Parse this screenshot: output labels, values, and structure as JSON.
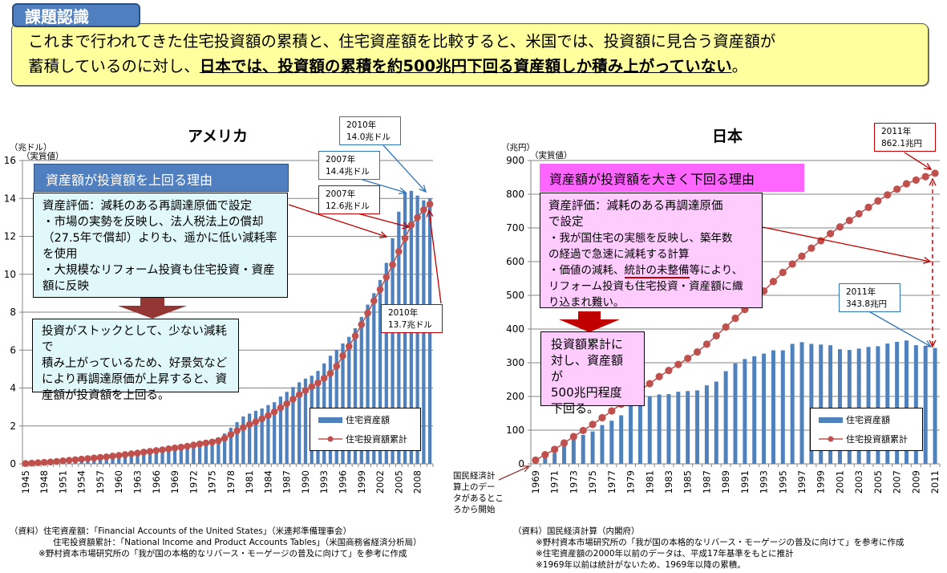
{
  "header": {
    "tag": "課題認識",
    "line1": "これまで行われてきた住宅投資額の累積と、住宅資産額を比較すると、米国では、投資額に見合う資産額が",
    "line2_plain": "蓄積しているのに対し、",
    "line2_underlined": "日本では、投資額の累積を約500兆円下回る資産額しか積み上がっていない",
    "line2_end": "。"
  },
  "us_panel": {
    "reason_title": "資産額が投資額を上回る理由",
    "reason_lines": [
      "資産評価：減耗のある再調達原価で設定",
      "・市場の実勢を反映し、法人税法上の償却",
      "（27.5年で償却）よりも、遥かに低い減耗率",
      "を使用",
      "・大規模なリフォーム投資も住宅投資・資産",
      "額に反映"
    ],
    "conclusion_lines": [
      "投資がストックとして、少ない減耗で",
      "積み上がっているため、好景気など",
      "により再調達原価が上昇すると、資",
      "産額が投資額を上回る。"
    ],
    "callouts": [
      {
        "year": "2010年",
        "value": "14.0兆ドル",
        "color": "blue"
      },
      {
        "year": "2007年",
        "value": "14.4兆ドル",
        "color": "blue"
      },
      {
        "year": "2007年",
        "value": "12.6兆ドル",
        "color": "red"
      },
      {
        "year": "2010年",
        "value": "13.7兆ドル",
        "color": "red"
      }
    ],
    "sources": [
      "（資料）住宅資産額：「Financial Accounts of the United States」（米連邦準備理事会）",
      "住宅投資額累計：「National Income and Product Accounts Tables」（米国商務省経済分析局）",
      "※野村資本市場研究所の「我が国の本格的なリバース・モーゲージの普及に向けて」を参考に作成"
    ]
  },
  "jp_panel": {
    "reason_title": "資産額が投資額を大きく下回る理由",
    "reason_lines": [
      "資産評価：減耗のある再調達原価",
      "で設定",
      "・我が国住宅の実態を反映し、築年数",
      "の経過で急速に減耗する計算"
    ],
    "reason_line5_pre": "・価値の減耗、",
    "reason_line5_underlined": "統計の未整備",
    "reason_line5_post": "等により、",
    "reason_lines_tail": [
      "リフォーム投資も住宅投資・資産額に織",
      "り込まれ難い。"
    ],
    "conclusion_lines": [
      "投資額累計に",
      "対し、資産額が",
      "500兆円程度",
      "下回る。"
    ],
    "callouts": [
      {
        "year": "2011年",
        "value": "862.1兆円",
        "color": "red"
      },
      {
        "year": "2011年",
        "value": "343.8兆円",
        "color": "blue"
      }
    ],
    "start_note": [
      "国民経済計",
      "算上のデー",
      "タがあるとこ",
      "ろから開始"
    ],
    "sources": [
      "（資料）国民経済計算（内閣府）",
      "※野村資本市場研究所の「我が国の本格的なリバース・モーゲージの普及に向けて」を参考に作成",
      "※住宅資産額の2000年以前のデータは、平成17年基準をもとに推計",
      "※1969年以前は統計がないため、1969年以降の累積。"
    ]
  },
  "colors": {
    "bar": "#4f81bd",
    "line": "#c0504d",
    "callout_blue": "#2e75b6",
    "callout_red": "#c00000",
    "arrow_down_us": "#943634",
    "arrow_down_jp": "#c00000"
  },
  "chart_data": [
    {
      "type": "bar+line",
      "title": "アメリカ",
      "unit_label": "（兆ドル）",
      "unit_sub": "（実質値）",
      "xlabel": "",
      "ylabel": "兆ドル",
      "ylim": [
        0,
        16
      ],
      "yticks": [
        0,
        2,
        4,
        6,
        8,
        10,
        12,
        14,
        16
      ],
      "grid": true,
      "legend": "bottom-right",
      "x": [
        1945,
        1946,
        1947,
        1948,
        1949,
        1950,
        1951,
        1952,
        1953,
        1954,
        1955,
        1956,
        1957,
        1958,
        1959,
        1960,
        1961,
        1962,
        1963,
        1964,
        1965,
        1966,
        1967,
        1968,
        1969,
        1970,
        1971,
        1972,
        1973,
        1974,
        1975,
        1976,
        1977,
        1978,
        1979,
        1980,
        1981,
        1982,
        1983,
        1984,
        1985,
        1986,
        1987,
        1988,
        1989,
        1990,
        1991,
        1992,
        1993,
        1994,
        1995,
        1996,
        1997,
        1998,
        1999,
        2000,
        2001,
        2002,
        2003,
        2004,
        2005,
        2006,
        2007,
        2008,
        2009,
        2010
      ],
      "xtick_labels": [
        "1945",
        "1948",
        "1951",
        "1954",
        "1957",
        "1960",
        "1963",
        "1966",
        "1969",
        "1972",
        "1975",
        "1978",
        "1981",
        "1984",
        "1987",
        "1990",
        "1993",
        "1996",
        "1999",
        "2002",
        "2005",
        "2008"
      ],
      "series": [
        {
          "name": "住宅資産額",
          "kind": "bar",
          "values": [
            0.05,
            0.07,
            0.09,
            0.11,
            0.13,
            0.15,
            0.17,
            0.19,
            0.21,
            0.24,
            0.27,
            0.3,
            0.33,
            0.36,
            0.4,
            0.43,
            0.47,
            0.51,
            0.55,
            0.6,
            0.64,
            0.68,
            0.72,
            0.78,
            0.83,
            0.88,
            0.94,
            1.01,
            1.1,
            1.2,
            1.28,
            1.4,
            1.6,
            1.9,
            2.2,
            2.5,
            2.65,
            2.8,
            2.92,
            3.1,
            3.25,
            3.55,
            3.8,
            4.05,
            4.3,
            4.5,
            4.65,
            4.9,
            5.3,
            5.7,
            6.0,
            6.35,
            6.7,
            7.15,
            7.75,
            8.4,
            9.0,
            9.7,
            10.6,
            11.9,
            13.3,
            14.3,
            14.4,
            14.15,
            13.9,
            14.0
          ]
        },
        {
          "name": "住宅投資額累計",
          "kind": "line",
          "values": [
            0.02,
            0.04,
            0.06,
            0.08,
            0.1,
            0.13,
            0.16,
            0.19,
            0.22,
            0.25,
            0.28,
            0.31,
            0.34,
            0.37,
            0.41,
            0.45,
            0.49,
            0.53,
            0.57,
            0.62,
            0.66,
            0.7,
            0.74,
            0.79,
            0.84,
            0.88,
            0.93,
            0.99,
            1.05,
            1.1,
            1.15,
            1.22,
            1.35,
            1.55,
            1.75,
            1.92,
            2.08,
            2.22,
            2.38,
            2.55,
            2.75,
            2.96,
            3.18,
            3.42,
            3.65,
            3.87,
            4.07,
            4.27,
            4.52,
            4.78,
            5.15,
            5.7,
            6.2,
            6.75,
            7.35,
            7.95,
            8.6,
            9.2,
            9.85,
            10.5,
            11.2,
            11.9,
            12.6,
            13.0,
            13.4,
            13.7
          ]
        }
      ],
      "annotations": [
        "2007年 14.4兆ドル",
        "2010年 14.0兆ドル",
        "2007年 12.6兆ドル",
        "2010年 13.7兆ドル"
      ]
    },
    {
      "type": "bar+line",
      "title": "日本",
      "unit_label": "（兆円）",
      "unit_sub": "（実質値）",
      "xlabel": "",
      "ylabel": "兆円",
      "ylim": [
        0,
        900
      ],
      "yticks": [
        0,
        100,
        200,
        300,
        400,
        500,
        600,
        700,
        800,
        900
      ],
      "grid": true,
      "legend": "bottom-right",
      "x": [
        1969,
        1970,
        1971,
        1972,
        1973,
        1974,
        1975,
        1976,
        1977,
        1978,
        1979,
        1980,
        1981,
        1982,
        1983,
        1984,
        1985,
        1986,
        1987,
        1988,
        1989,
        1990,
        1991,
        1992,
        1993,
        1994,
        1995,
        1996,
        1997,
        1998,
        1999,
        2000,
        2001,
        2002,
        2003,
        2004,
        2005,
        2006,
        2007,
        2008,
        2009,
        2010,
        2011
      ],
      "xtick_labels": [
        "1969",
        "1971",
        "1973",
        "1975",
        "1977",
        "1979",
        "1981",
        "1983",
        "1985",
        "1987",
        "1989",
        "1991",
        "1993",
        "1995",
        "1997",
        "1999",
        "2001",
        "2003",
        "2005",
        "2007",
        "2009",
        "2011"
      ],
      "series": [
        {
          "name": "住宅資産額",
          "kind": "bar",
          "values": [
            5,
            18,
            32,
            52,
            72,
            86,
            96,
            115,
            128,
            144,
            175,
            180,
            200,
            206,
            207,
            214,
            216,
            218,
            233,
            244,
            275,
            298,
            311,
            319,
            327,
            337,
            337,
            356,
            361,
            356,
            354,
            352,
            340,
            338,
            342,
            347,
            349,
            357,
            362,
            366,
            352,
            348,
            343.8
          ]
        },
        {
          "name": "住宅投資額累計",
          "kind": "line",
          "values": [
            11,
            27,
            43,
            62,
            81,
            99,
            117,
            137,
            157,
            177,
            198,
            219,
            238,
            259,
            277,
            295,
            313,
            332,
            355,
            380,
            406,
            432,
            458,
            485,
            513,
            541,
            568,
            593,
            616,
            640,
            662,
            683,
            703,
            722,
            742,
            761,
            780,
            798,
            815,
            831,
            842,
            852,
            862.1
          ]
        }
      ],
      "annotations": [
        "2011年 862.1兆円",
        "2011年 343.8兆円"
      ]
    }
  ]
}
